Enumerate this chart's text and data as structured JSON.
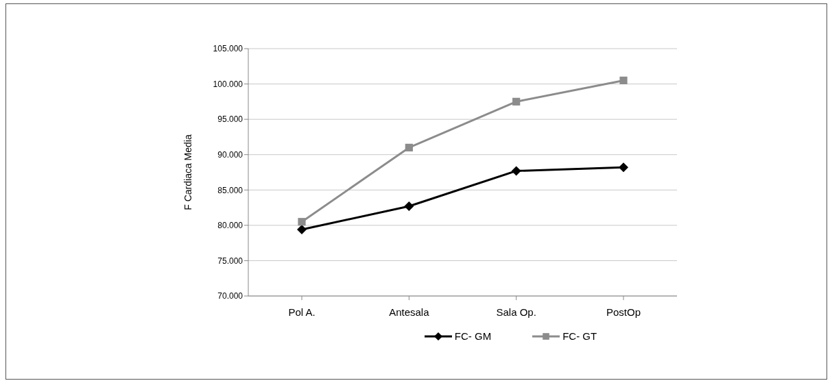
{
  "chart_data": {
    "type": "line",
    "ylabel": "F Cardiaca Media",
    "categories": [
      "Pol A.",
      "Antesala",
      "Sala Op.",
      "PostOp"
    ],
    "series": [
      {
        "name": "FC- GM",
        "color": "#000000",
        "marker": "diamond",
        "values": [
          79.4,
          82.7,
          87.7,
          88.2
        ]
      },
      {
        "name": "FC- GT",
        "color": "#8c8c8c",
        "marker": "square",
        "values": [
          80.5,
          91.0,
          97.5,
          100.5
        ]
      }
    ],
    "ylim": [
      70,
      105
    ],
    "yticks": [
      {
        "value": 70,
        "label": "70.000"
      },
      {
        "value": 75,
        "label": "75.000"
      },
      {
        "value": 80,
        "label": "80.000"
      },
      {
        "value": 85,
        "label": "85.000"
      },
      {
        "value": 90,
        "label": "90.000"
      },
      {
        "value": 95,
        "label": "95.000"
      },
      {
        "value": 100,
        "label": "100.000"
      },
      {
        "value": 105,
        "label": "105.000"
      }
    ],
    "grid": "y",
    "legend": "bottom"
  }
}
